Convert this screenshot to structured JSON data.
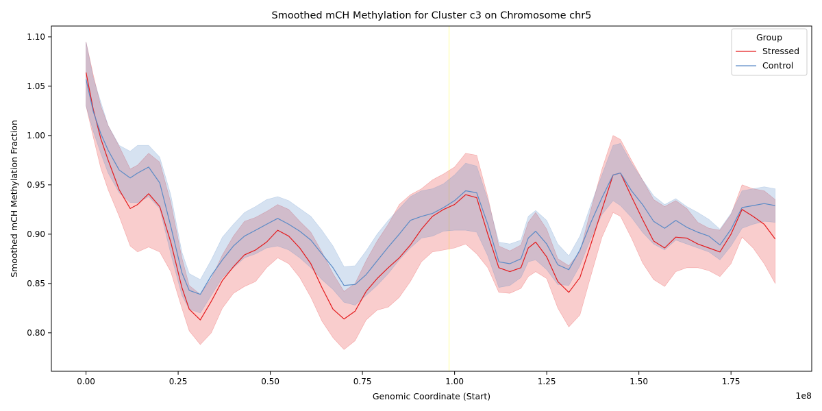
{
  "chart_data": {
    "type": "line",
    "title": "Smoothed mCH Methylation for Cluster c3 on Chromosome chr5",
    "xlabel": "Genomic Coordinate (Start)",
    "ylabel": "Smoothed mCH Methylation Fraction",
    "x_offset_label": "1e8",
    "xlim": [
      -0.094,
      1.969
    ],
    "ylim": [
      0.761,
      1.111
    ],
    "x_ticks": [
      0.0,
      0.25,
      0.5,
      0.75,
      1.0,
      1.25,
      1.5,
      1.75
    ],
    "x_tick_labels": [
      "0.00",
      "0.25",
      "0.50",
      "0.75",
      "1.00",
      "1.25",
      "1.50",
      "1.75"
    ],
    "y_ticks": [
      0.8,
      0.85,
      0.9,
      0.95,
      1.0,
      1.05,
      1.1
    ],
    "y_tick_labels": [
      "0.80",
      "0.85",
      "0.90",
      "0.95",
      "1.00",
      "1.05",
      "1.10"
    ],
    "vline": {
      "x": 0.985,
      "color": "#ffff99"
    },
    "grid": false,
    "legend": {
      "title": "Group",
      "position": "top-right"
    },
    "series": [
      {
        "name": "Stressed",
        "color": "#e41a1c",
        "x": [
          0.0,
          0.02,
          0.04,
          0.06,
          0.09,
          0.12,
          0.14,
          0.17,
          0.2,
          0.23,
          0.26,
          0.28,
          0.31,
          0.34,
          0.37,
          0.4,
          0.43,
          0.46,
          0.49,
          0.52,
          0.55,
          0.58,
          0.61,
          0.64,
          0.67,
          0.7,
          0.73,
          0.76,
          0.79,
          0.82,
          0.85,
          0.88,
          0.91,
          0.94,
          0.97,
          1.0,
          1.03,
          1.06,
          1.09,
          1.12,
          1.15,
          1.18,
          1.2,
          1.22,
          1.25,
          1.28,
          1.31,
          1.34,
          1.37,
          1.4,
          1.43,
          1.45,
          1.48,
          1.51,
          1.54,
          1.57,
          1.6,
          1.63,
          1.66,
          1.69,
          1.72,
          1.75,
          1.78,
          1.81,
          1.84,
          1.87
        ],
        "y": [
          1.064,
          1.026,
          0.997,
          0.975,
          0.945,
          0.926,
          0.93,
          0.941,
          0.928,
          0.892,
          0.846,
          0.824,
          0.813,
          0.832,
          0.853,
          0.867,
          0.879,
          0.884,
          0.892,
          0.904,
          0.898,
          0.886,
          0.87,
          0.846,
          0.824,
          0.814,
          0.822,
          0.842,
          0.855,
          0.866,
          0.876,
          0.889,
          0.905,
          0.918,
          0.925,
          0.93,
          0.94,
          0.937,
          0.9,
          0.866,
          0.862,
          0.866,
          0.886,
          0.892,
          0.877,
          0.852,
          0.841,
          0.856,
          0.89,
          0.925,
          0.96,
          0.962,
          0.938,
          0.915,
          0.893,
          0.886,
          0.897,
          0.896,
          0.89,
          0.886,
          0.882,
          0.9,
          0.925,
          0.918,
          0.91,
          0.895
        ],
        "lower": [
          1.03,
          0.998,
          0.967,
          0.945,
          0.918,
          0.888,
          0.882,
          0.887,
          0.882,
          0.862,
          0.825,
          0.802,
          0.788,
          0.8,
          0.825,
          0.84,
          0.847,
          0.852,
          0.866,
          0.876,
          0.87,
          0.856,
          0.836,
          0.812,
          0.795,
          0.783,
          0.792,
          0.813,
          0.823,
          0.826,
          0.836,
          0.852,
          0.872,
          0.882,
          0.884,
          0.886,
          0.89,
          0.88,
          0.866,
          0.841,
          0.84,
          0.845,
          0.857,
          0.862,
          0.855,
          0.825,
          0.806,
          0.818,
          0.858,
          0.897,
          0.922,
          0.918,
          0.896,
          0.871,
          0.854,
          0.847,
          0.862,
          0.866,
          0.866,
          0.863,
          0.857,
          0.87,
          0.897,
          0.886,
          0.87,
          0.85
        ],
        "upper": [
          1.095,
          1.061,
          1.03,
          1.01,
          0.989,
          0.966,
          0.97,
          0.982,
          0.973,
          0.932,
          0.876,
          0.848,
          0.839,
          0.855,
          0.879,
          0.898,
          0.913,
          0.917,
          0.923,
          0.93,
          0.925,
          0.913,
          0.902,
          0.882,
          0.86,
          0.842,
          0.85,
          0.873,
          0.893,
          0.91,
          0.93,
          0.94,
          0.946,
          0.955,
          0.961,
          0.968,
          0.982,
          0.98,
          0.938,
          0.888,
          0.883,
          0.889,
          0.912,
          0.922,
          0.905,
          0.875,
          0.868,
          0.882,
          0.925,
          0.966,
          1.0,
          0.996,
          0.975,
          0.955,
          0.935,
          0.928,
          0.934,
          0.926,
          0.912,
          0.906,
          0.904,
          0.92,
          0.95,
          0.946,
          0.944,
          0.935
        ]
      },
      {
        "name": "Control",
        "color": "#5a8ac6",
        "x": [
          0.0,
          0.02,
          0.04,
          0.06,
          0.09,
          0.12,
          0.14,
          0.17,
          0.2,
          0.23,
          0.26,
          0.28,
          0.31,
          0.34,
          0.37,
          0.4,
          0.43,
          0.46,
          0.49,
          0.52,
          0.55,
          0.58,
          0.61,
          0.64,
          0.67,
          0.7,
          0.73,
          0.76,
          0.79,
          0.82,
          0.85,
          0.88,
          0.91,
          0.94,
          0.97,
          1.0,
          1.03,
          1.06,
          1.09,
          1.12,
          1.15,
          1.18,
          1.2,
          1.22,
          1.25,
          1.28,
          1.31,
          1.34,
          1.37,
          1.4,
          1.43,
          1.45,
          1.48,
          1.51,
          1.54,
          1.57,
          1.6,
          1.63,
          1.66,
          1.69,
          1.72,
          1.75,
          1.78,
          1.81,
          1.84,
          1.87
        ],
        "y": [
          1.057,
          1.024,
          1.002,
          0.985,
          0.965,
          0.957,
          0.962,
          0.968,
          0.952,
          0.908,
          0.861,
          0.843,
          0.839,
          0.858,
          0.874,
          0.888,
          0.898,
          0.904,
          0.91,
          0.916,
          0.91,
          0.903,
          0.894,
          0.88,
          0.866,
          0.848,
          0.849,
          0.859,
          0.873,
          0.887,
          0.9,
          0.914,
          0.918,
          0.921,
          0.927,
          0.934,
          0.944,
          0.942,
          0.91,
          0.872,
          0.87,
          0.875,
          0.896,
          0.903,
          0.89,
          0.869,
          0.864,
          0.884,
          0.912,
          0.937,
          0.96,
          0.962,
          0.944,
          0.93,
          0.913,
          0.906,
          0.914,
          0.907,
          0.902,
          0.898,
          0.889,
          0.905,
          0.927,
          0.929,
          0.931,
          0.929
        ],
        "lower": [
          1.03,
          1.004,
          0.982,
          0.962,
          0.942,
          0.932,
          0.932,
          0.938,
          0.926,
          0.88,
          0.838,
          0.824,
          0.82,
          0.838,
          0.856,
          0.866,
          0.876,
          0.88,
          0.886,
          0.888,
          0.884,
          0.876,
          0.866,
          0.854,
          0.844,
          0.831,
          0.828,
          0.838,
          0.848,
          0.86,
          0.874,
          0.886,
          0.896,
          0.898,
          0.903,
          0.904,
          0.904,
          0.902,
          0.878,
          0.846,
          0.848,
          0.856,
          0.872,
          0.874,
          0.864,
          0.849,
          0.848,
          0.868,
          0.896,
          0.92,
          0.934,
          0.929,
          0.917,
          0.902,
          0.89,
          0.884,
          0.894,
          0.89,
          0.886,
          0.882,
          0.874,
          0.888,
          0.906,
          0.91,
          0.913,
          0.912
        ],
        "upper": [
          1.095,
          1.058,
          1.034,
          1.01,
          0.99,
          0.984,
          0.99,
          0.99,
          0.978,
          0.94,
          0.882,
          0.86,
          0.854,
          0.874,
          0.897,
          0.91,
          0.922,
          0.928,
          0.935,
          0.938,
          0.934,
          0.926,
          0.918,
          0.904,
          0.888,
          0.867,
          0.868,
          0.883,
          0.9,
          0.914,
          0.926,
          0.938,
          0.944,
          0.946,
          0.951,
          0.96,
          0.972,
          0.969,
          0.935,
          0.892,
          0.89,
          0.894,
          0.918,
          0.924,
          0.914,
          0.89,
          0.878,
          0.898,
          0.93,
          0.96,
          0.99,
          0.992,
          0.972,
          0.955,
          0.939,
          0.93,
          0.936,
          0.928,
          0.922,
          0.915,
          0.905,
          0.921,
          0.944,
          0.946,
          0.948,
          0.946
        ]
      }
    ]
  }
}
